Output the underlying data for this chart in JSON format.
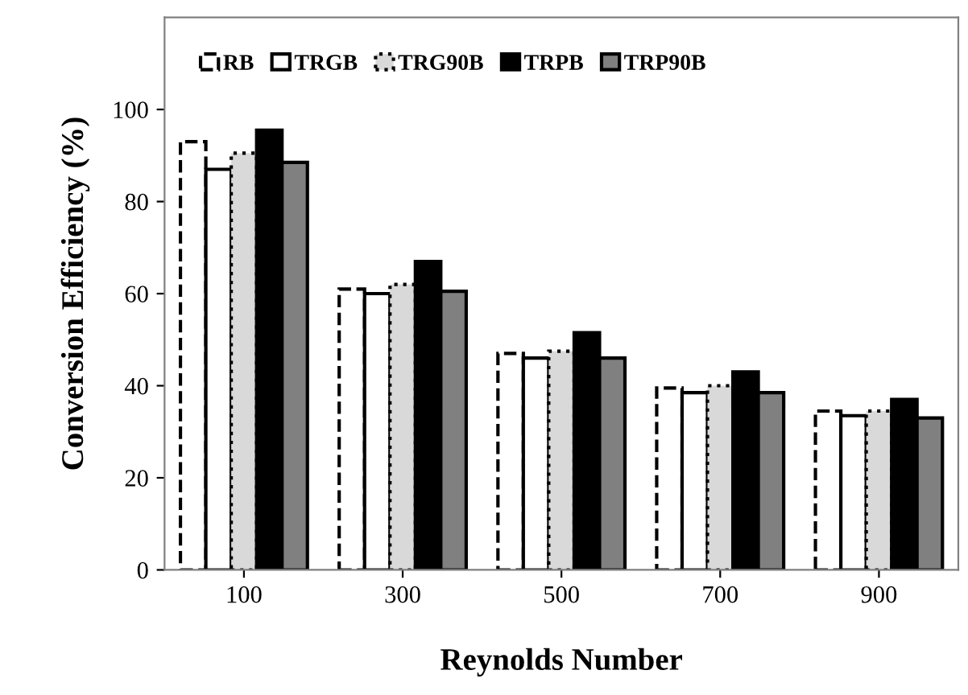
{
  "chart_data": {
    "type": "bar",
    "xlabel": "Reynolds Number",
    "ylabel": "Conversion Efficiency (%)",
    "categories": [
      "100",
      "300",
      "500",
      "700",
      "900"
    ],
    "series": [
      {
        "name": "RB",
        "color": "#ffffff",
        "values": [
          93,
          61,
          47,
          39.5,
          34.5
        ]
      },
      {
        "name": "TRGB",
        "color": "#ffffff",
        "values": [
          87,
          60,
          46,
          38.5,
          33.5
        ]
      },
      {
        "name": "TRG90B",
        "color": "#d9d9d9",
        "values": [
          90.5,
          62,
          47.5,
          40,
          34.5
        ]
      },
      {
        "name": "TRPB",
        "color": "#000000",
        "values": [
          95.5,
          67,
          51.5,
          43,
          37
        ]
      },
      {
        "name": "TRP90B",
        "color": "#808080",
        "values": [
          88.5,
          60.5,
          46,
          38.5,
          33
        ]
      }
    ],
    "ylim": [
      0,
      120
    ],
    "yticks": [
      0,
      20,
      40,
      60,
      80,
      100
    ],
    "legend": "top left",
    "grid": false
  }
}
